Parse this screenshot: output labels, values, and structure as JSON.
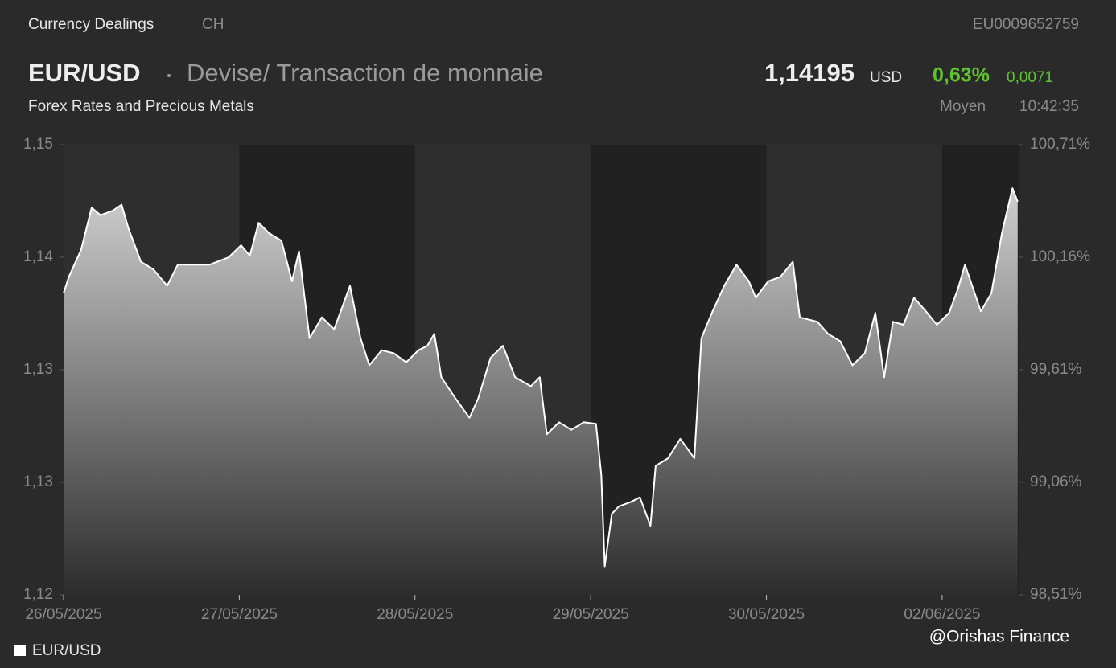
{
  "header": {
    "section": "Currency Dealings",
    "country": "CH",
    "isin": "EU0009652759",
    "symbol": "EUR/USD",
    "description": "Devise/ Transaction de monnaie",
    "price": "1,14195",
    "currency": "USD",
    "change_pct": "0,63%",
    "change_abs": "0,0071",
    "category": "Forex Rates and Precious Metals",
    "price_type": "Moyen",
    "time": "10:42:35"
  },
  "chart_data": {
    "type": "area",
    "x": [
      0,
      0.03,
      0.1,
      0.16,
      0.21,
      0.28,
      0.33,
      0.37,
      0.44,
      0.51,
      0.59,
      0.65,
      0.74,
      0.83,
      0.94,
      1.01,
      1.06,
      1.11,
      1.17,
      1.24,
      1.3,
      1.34,
      1.4,
      1.47,
      1.54,
      1.63,
      1.69,
      1.74,
      1.81,
      1.88,
      1.95,
      2.02,
      2.07,
      2.11,
      2.15,
      2.23,
      2.31,
      2.36,
      2.43,
      2.5,
      2.57,
      2.66,
      2.71,
      2.75,
      2.82,
      2.89,
      2.96,
      3.03,
      3.06,
      3.08,
      3.12,
      3.16,
      3.23,
      3.28,
      3.34,
      3.37,
      3.44,
      3.51,
      3.59,
      3.63,
      3.69,
      3.76,
      3.83,
      3.9,
      3.94,
      4.01,
      4.08,
      4.15,
      4.19,
      4.29,
      4.35,
      4.42,
      4.49,
      4.56,
      4.62,
      4.67,
      4.72,
      4.78,
      4.84,
      4.9,
      4.97,
      5.04,
      5.09,
      5.13,
      5.22,
      5.28,
      5.34,
      5.4,
      5.43
    ],
    "series": [
      {
        "name": "EUR/USD",
        "color": "#ffffff",
        "values": [
          1.1401,
          1.1412,
          1.143,
          1.1458,
          1.1453,
          1.1456,
          1.146,
          1.1444,
          1.1422,
          1.1417,
          1.1406,
          1.142,
          1.142,
          1.142,
          1.1425,
          1.1433,
          1.1426,
          1.1448,
          1.1441,
          1.1436,
          1.1409,
          1.1429,
          1.1371,
          1.1385,
          1.1377,
          1.1406,
          1.1371,
          1.1353,
          1.1363,
          1.1361,
          1.1355,
          1.1363,
          1.1366,
          1.1374,
          1.1345,
          1.1331,
          1.1318,
          1.1331,
          1.1358,
          1.1366,
          1.1345,
          1.1339,
          1.1345,
          1.1307,
          1.1315,
          1.131,
          1.1315,
          1.1314,
          1.128,
          1.1219,
          1.1254,
          1.1259,
          1.1262,
          1.1265,
          1.1246,
          1.1286,
          1.1291,
          1.1304,
          1.1291,
          1.1371,
          1.1388,
          1.1406,
          1.142,
          1.1409,
          1.1398,
          1.1409,
          1.1412,
          1.1422,
          1.1385,
          1.1382,
          1.1374,
          1.1369,
          1.1353,
          1.1361,
          1.1388,
          1.1345,
          1.1382,
          1.138,
          1.1398,
          1.139,
          1.138,
          1.1388,
          1.1404,
          1.142,
          1.1389,
          1.1401,
          1.1441,
          1.1471,
          1.1462
        ]
      }
    ],
    "xlim": [
      0,
      5.44
    ],
    "xticks": [
      {
        "value": 0,
        "label": "26/05/2025"
      },
      {
        "value": 1,
        "label": "27/05/2025"
      },
      {
        "value": 2,
        "label": "28/05/2025"
      },
      {
        "value": 3,
        "label": "29/05/2025"
      },
      {
        "value": 4,
        "label": "30/05/2025"
      },
      {
        "value": 5,
        "label": "02/06/2025"
      }
    ],
    "ylim": [
      1.12,
      1.15
    ],
    "yticks": [
      {
        "value": 1.12,
        "label": "1,12"
      },
      {
        "value": 1.1275,
        "label": "1,13"
      },
      {
        "value": 1.135,
        "label": "1,13"
      },
      {
        "value": 1.1425,
        "label": "1,14"
      },
      {
        "value": 1.15,
        "label": "1,15"
      }
    ],
    "y2lim": [
      98.51,
      100.71
    ],
    "y2ticks": [
      {
        "value": 98.51,
        "label": "98,51%"
      },
      {
        "value": 99.06,
        "label": "99,06%"
      },
      {
        "value": 99.61,
        "label": "99,61%"
      },
      {
        "value": 100.16,
        "label": "100,16%"
      },
      {
        "value": 100.71,
        "label": "100,71%"
      }
    ],
    "legend": "bottom-left"
  },
  "watermark": "@Orishas Finance"
}
